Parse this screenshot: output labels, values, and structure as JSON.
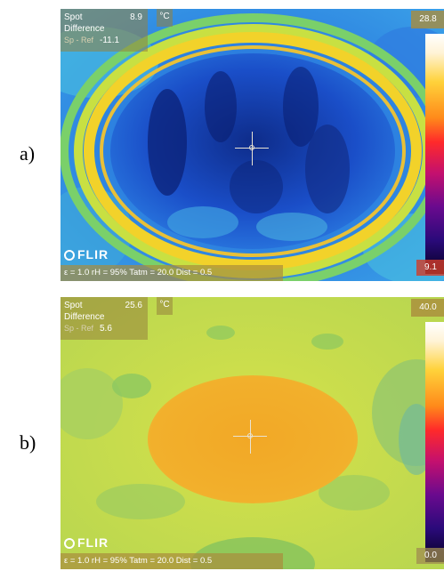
{
  "panels": [
    {
      "letter": "a)",
      "spot_label": "Spot",
      "spot_value": "8.9",
      "unit": "°C",
      "difference_label": "Difference",
      "sp_ref_label": "Sp - Ref",
      "sp_ref_value": "-11.1",
      "scale_max": "28.8",
      "scale_min": "9.1",
      "brand": "FLIR",
      "params": "ε = 1.0  rH = 95%  Tatm = 20.0  Dist = 0.5"
    },
    {
      "letter": "b)",
      "spot_label": "Spot",
      "spot_value": "25.6",
      "unit": "°C",
      "difference_label": "Difference",
      "sp_ref_label": "Sp - Ref",
      "sp_ref_value": "5.6",
      "scale_max": "40.0",
      "scale_min": "0.0",
      "brand": "FLIR",
      "params": "ε = 1.0  rH = 95%  Tatm = 20.0  Dist = 0.5"
    }
  ],
  "icons": {
    "crosshair": "crosshair-icon",
    "logo": "flir-logo-icon"
  }
}
